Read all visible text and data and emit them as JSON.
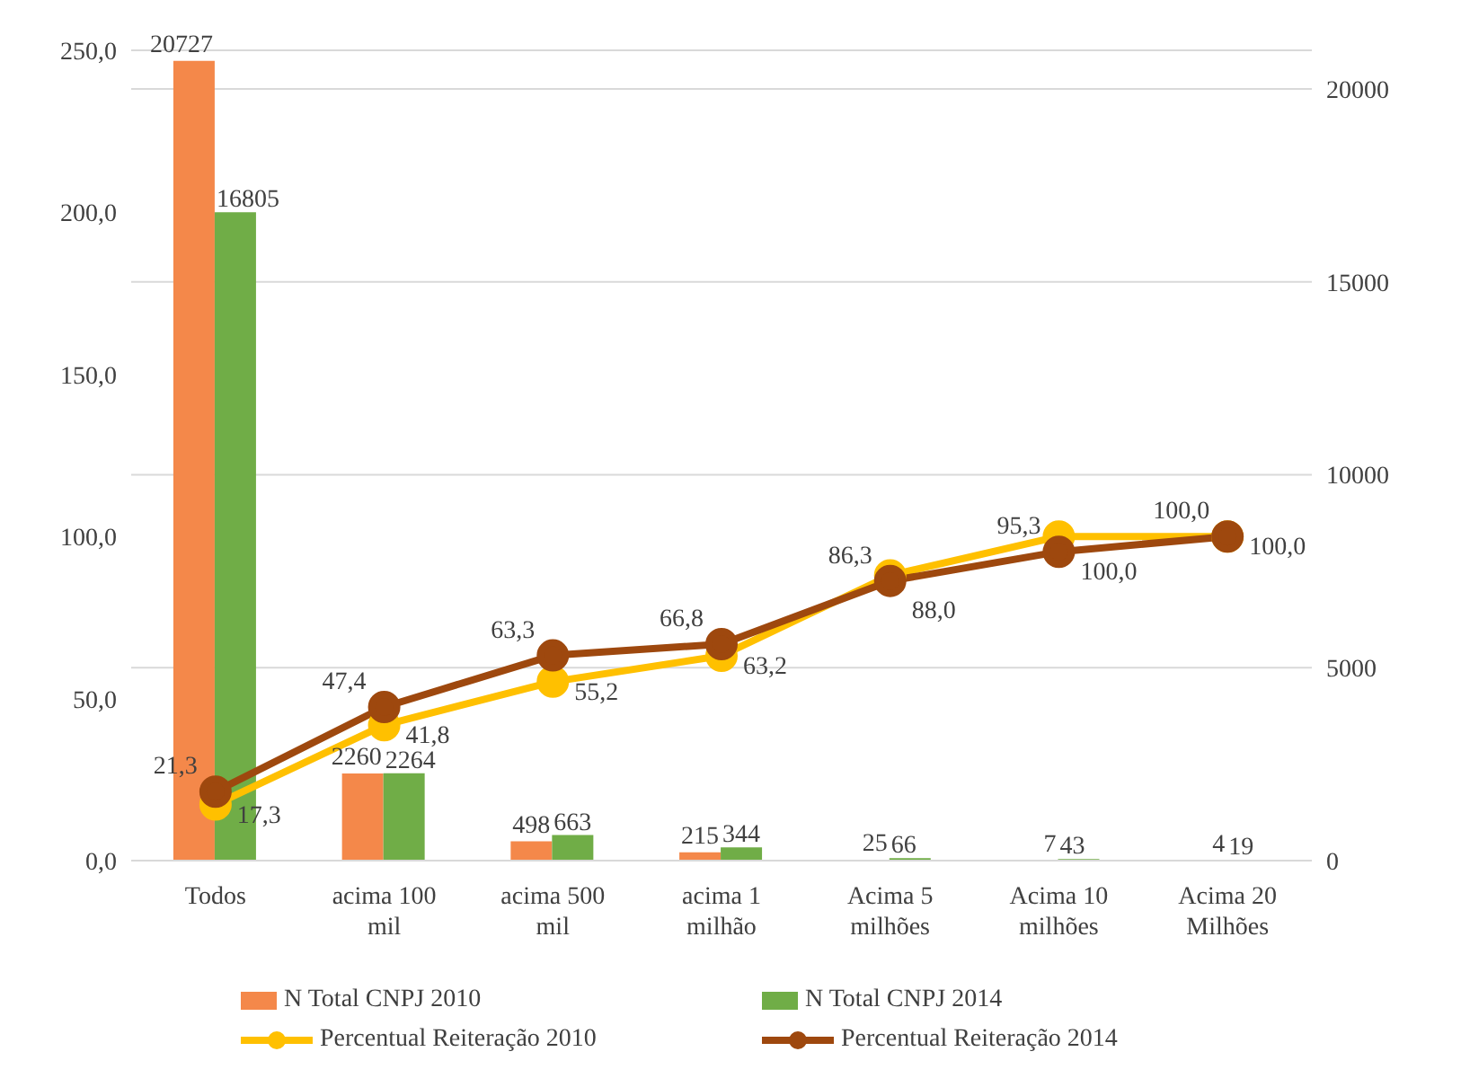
{
  "chart_data": {
    "type": "bar",
    "categories": [
      "Todos",
      "acima 100 mil",
      "acima 500 mil",
      "acima 1 milhão",
      "Acima 5 milhões",
      "Acima 10 milhões",
      "Acima 20 Milhões"
    ],
    "series": [
      {
        "name": "N Total CNPJ 2010",
        "axis": "y2",
        "color": "#f4884a",
        "values": [
          20727,
          2260,
          498,
          215,
          25,
          7,
          4
        ],
        "value_labels": [
          "20727",
          "2260",
          "498",
          "215",
          "25",
          "7",
          "4"
        ]
      },
      {
        "name": "N Total CNPJ 2014",
        "axis": "y2",
        "color": "#70ad47",
        "values": [
          16805,
          2264,
          663,
          344,
          66,
          43,
          19
        ],
        "value_labels": [
          "16805",
          "2264",
          "663",
          "344",
          "66",
          "43",
          "19"
        ]
      },
      {
        "name": "Percentual Reiteração 2010",
        "type": "line",
        "color": "#ffc000",
        "values": [
          17.3,
          41.8,
          55.2,
          63.2,
          88.0,
          100.0,
          100.0
        ],
        "value_labels": [
          "17,3",
          "41,8",
          "55,2",
          "63,2",
          "88,0",
          "100,0",
          "100,0"
        ]
      },
      {
        "name": "Percentual Reiteração 2014",
        "type": "line",
        "color": "#9e480e",
        "values": [
          21.3,
          47.4,
          63.3,
          66.8,
          86.3,
          95.3,
          100.0
        ],
        "value_labels": [
          "21,3",
          "47,4",
          "63,3",
          "66,8",
          "86,3",
          "95,3",
          "100,0"
        ]
      }
    ],
    "ylim": [
      0,
      250
    ],
    "yticks": [
      {
        "value": 0,
        "label": "0,0"
      },
      {
        "value": 50,
        "label": "50,0"
      },
      {
        "value": 100,
        "label": "100,0"
      },
      {
        "value": 150,
        "label": "150,0"
      },
      {
        "value": 200,
        "label": "200,0"
      },
      {
        "value": 250,
        "label": "250,0"
      }
    ],
    "y2lim": [
      0,
      21000
    ],
    "y2ticks": [
      0,
      5000,
      10000,
      15000,
      20000
    ],
    "grid": "y2",
    "legend": "bottom",
    "marker": "circle"
  }
}
